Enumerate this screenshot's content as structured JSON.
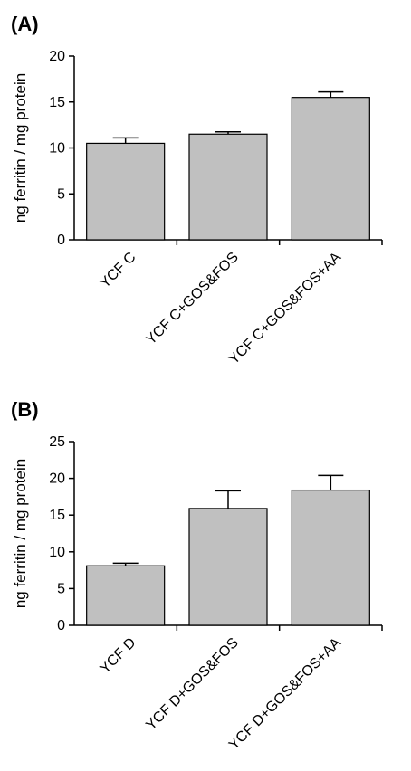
{
  "chart_data": [
    {
      "panel_label": "(A)",
      "type": "bar",
      "categories": [
        "YCF C",
        "YCF C+GOS&FOS",
        "YCF C+GOS&FOS+AA"
      ],
      "values": [
        10.5,
        11.5,
        15.5
      ],
      "errors": [
        0.6,
        0.25,
        0.6
      ],
      "ylabel": "ng ferritin / mg protein",
      "ylim": [
        0,
        20
      ],
      "yticks": [
        0,
        5,
        10,
        15,
        20
      ],
      "bar_color": "#c0c0c0",
      "grid": false
    },
    {
      "panel_label": "(B)",
      "type": "bar",
      "categories": [
        "YCF D",
        "YCF D+GOS&FOS",
        "YCF D+GOS&FOS+AA"
      ],
      "values": [
        8.1,
        15.9,
        18.4
      ],
      "errors": [
        0.35,
        2.4,
        2.0
      ],
      "ylabel": "ng ferritin / mg protein",
      "ylim": [
        0,
        25
      ],
      "yticks": [
        0,
        5,
        10,
        15,
        20,
        25
      ],
      "bar_color": "#c0c0c0",
      "grid": false
    }
  ]
}
